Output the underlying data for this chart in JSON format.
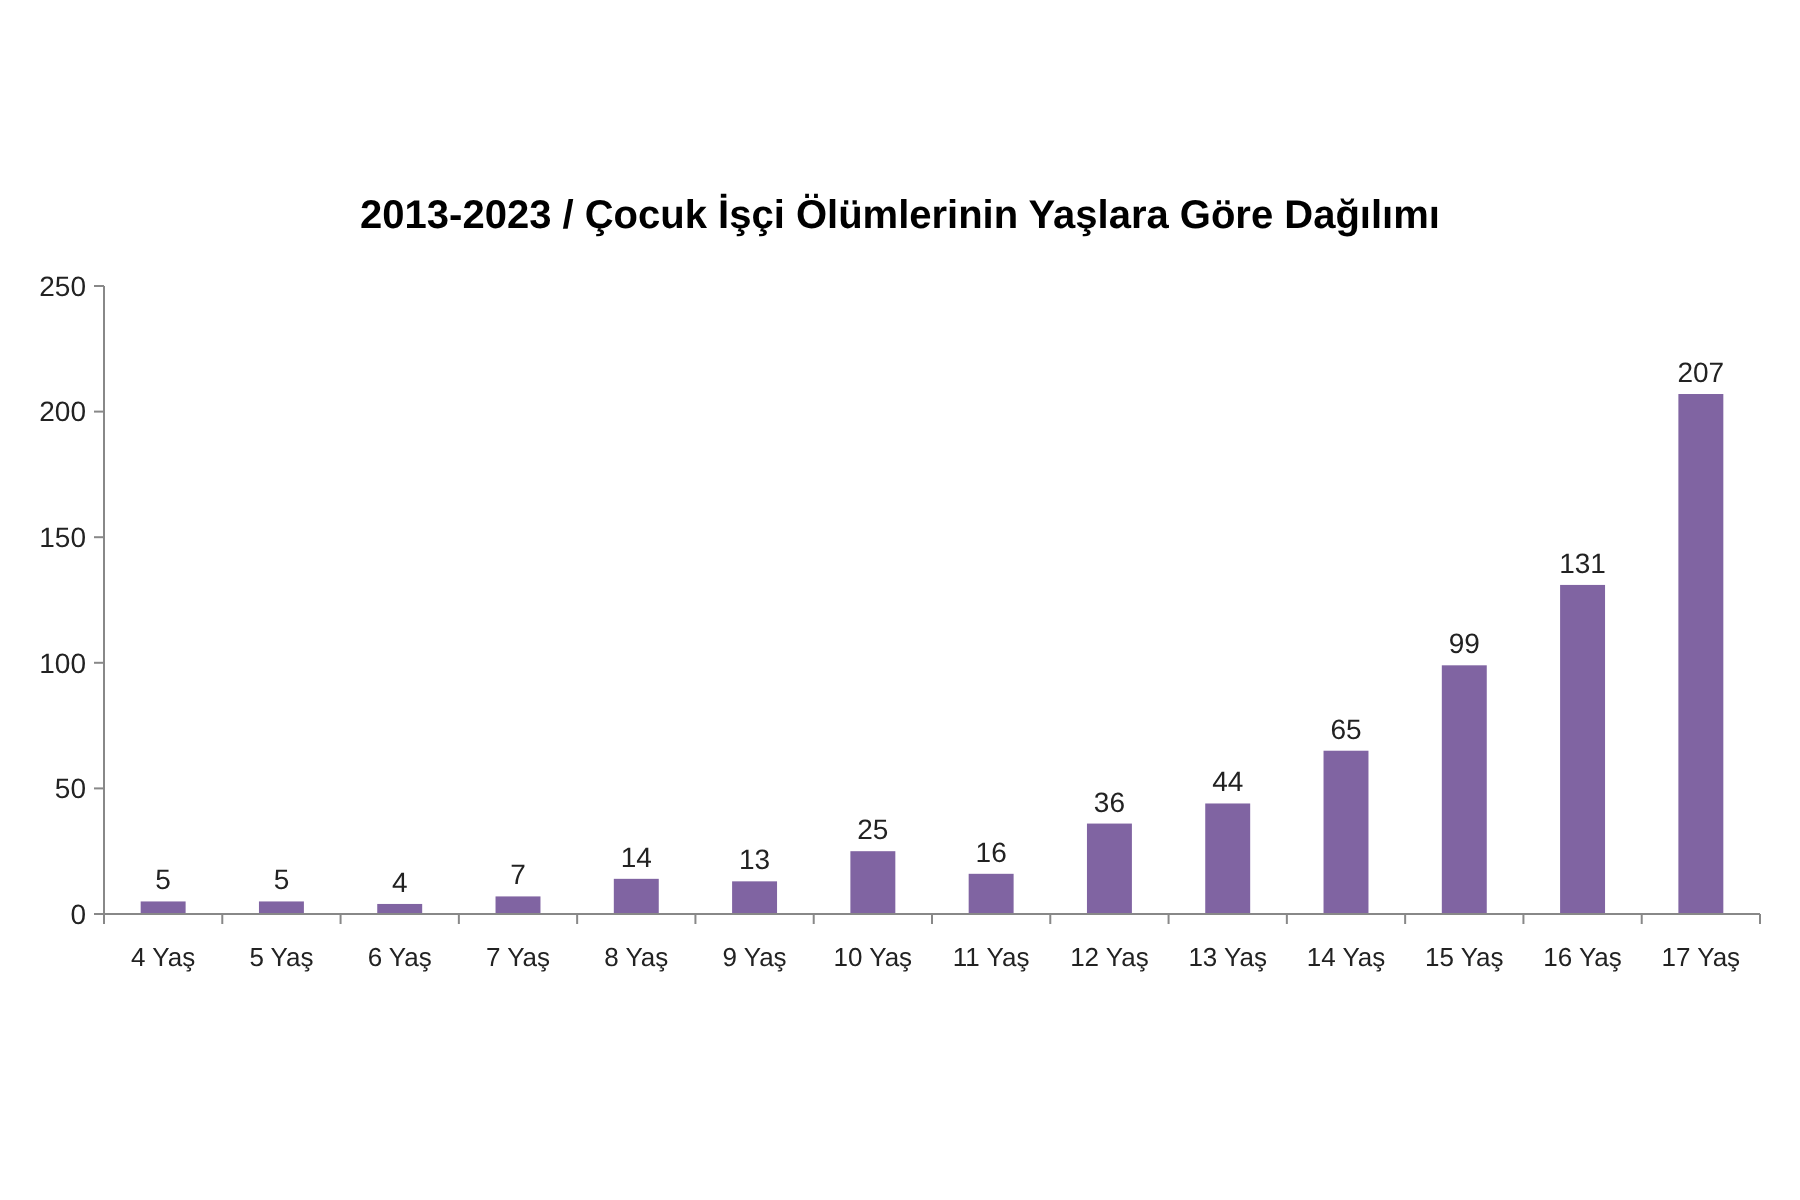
{
  "chart_data": {
    "type": "bar",
    "title": "2013-2023 / Çocuk İşçi Ölümlerinin Yaşlara Göre Dağılımı",
    "categories": [
      "4 Yaş",
      "5 Yaş",
      "6 Yaş",
      "7 Yaş",
      "8 Yaş",
      "9 Yaş",
      "10 Yaş",
      "11 Yaş",
      "12 Yaş",
      "13 Yaş",
      "14 Yaş",
      "15 Yaş",
      "16 Yaş",
      "17 Yaş"
    ],
    "values": [
      5,
      5,
      4,
      7,
      14,
      13,
      25,
      16,
      36,
      44,
      65,
      99,
      131,
      207
    ],
    "color": "#8064a2",
    "ylim": [
      0,
      250
    ],
    "yticks": [
      0,
      50,
      100,
      150,
      200,
      250
    ],
    "grid": false,
    "data_labels": true
  }
}
